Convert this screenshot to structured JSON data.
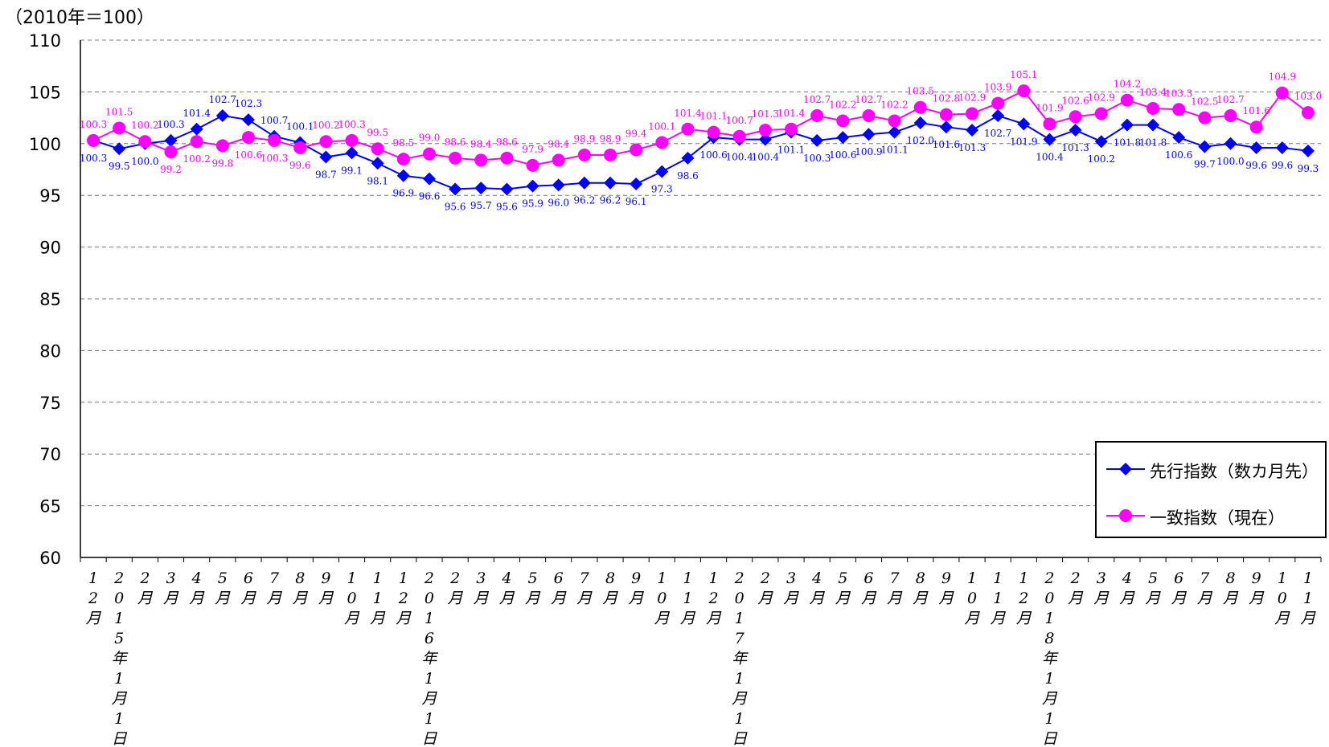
{
  "chart_data": {
    "type": "line",
    "unit_label": "（2010年＝100）",
    "ylim": [
      60,
      110
    ],
    "yticks": [
      "60",
      "65",
      "70",
      "75",
      "80",
      "85",
      "90",
      "95",
      "100",
      "105",
      "110"
    ],
    "grid": true,
    "legend_position": "bottom-right",
    "categories": [
      "12月",
      "2015年1月1日",
      "2月",
      "3月",
      "4月",
      "5月",
      "6月",
      "7月",
      "8月",
      "9月",
      "10月",
      "11月",
      "12月",
      "2016年1月1日",
      "2月",
      "3月",
      "4月",
      "5月",
      "6月",
      "7月",
      "8月",
      "9月",
      "10月",
      "11月",
      "12月",
      "2017年1月1日",
      "2月",
      "3月",
      "4月",
      "5月",
      "6月",
      "7月",
      "8月",
      "9月",
      "10月",
      "11月",
      "12月",
      "2018年1月1日",
      "2月",
      "3月",
      "4月",
      "5月",
      "6月",
      "7月",
      "8月",
      "9月",
      "10月",
      "11月"
    ],
    "series": [
      {
        "name": "先行指数（数カ月先）",
        "color": "#0000ff",
        "marker": "diamond",
        "values": [
          100.3,
          99.5,
          100.0,
          100.3,
          101.4,
          102.7,
          102.3,
          100.7,
          100.1,
          98.7,
          99.1,
          98.1,
          96.9,
          96.6,
          95.6,
          95.7,
          95.6,
          95.9,
          96.0,
          96.2,
          96.2,
          96.1,
          97.3,
          98.6,
          100.6,
          100.4,
          100.4,
          101.1,
          100.3,
          100.6,
          100.9,
          101.1,
          102.0,
          101.6,
          101.3,
          102.7,
          101.9,
          100.4,
          101.3,
          100.2,
          101.8,
          101.8,
          100.6,
          99.7,
          100.0,
          99.6,
          99.6,
          99.3
        ]
      },
      {
        "name": "一致指数（現在）",
        "color": "#ff00ff",
        "marker": "circle",
        "values": [
          100.3,
          101.5,
          100.2,
          99.2,
          100.2,
          99.8,
          100.6,
          100.3,
          99.6,
          100.2,
          100.3,
          99.5,
          98.5,
          99.0,
          98.6,
          98.4,
          98.6,
          97.9,
          98.4,
          98.9,
          98.9,
          99.4,
          100.1,
          101.4,
          101.1,
          100.7,
          101.3,
          101.4,
          102.7,
          102.2,
          102.7,
          102.2,
          103.5,
          102.8,
          102.9,
          103.9,
          105.1,
          101.9,
          102.6,
          102.9,
          104.2,
          103.4,
          103.3,
          102.5,
          102.7,
          101.6,
          104.9,
          103.0
        ]
      }
    ]
  },
  "legend": {
    "leading": "先行指数（数カ月先）",
    "coincident": "一致指数（現在）"
  }
}
